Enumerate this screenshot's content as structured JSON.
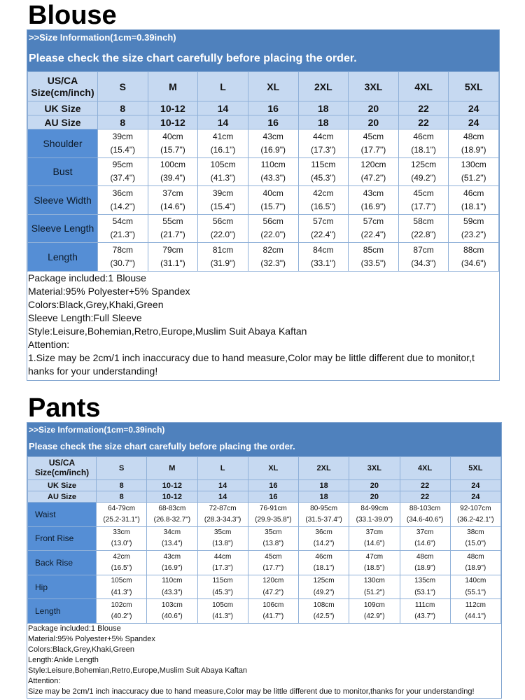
{
  "sizes": [
    "S",
    "M",
    "L",
    "XL",
    "2XL",
    "3XL",
    "4XL",
    "5XL"
  ],
  "blouse": {
    "title": "Blouse",
    "info": ">>Size Information(1cm=0.39inch)",
    "notice": "Please check the size chart carefully before placing the order.",
    "size_header_line1": "US/CA",
    "size_header_line2": "Size(cm/inch)",
    "uk_label": "UK Size",
    "uk": [
      "8",
      "10-12",
      "14",
      "16",
      "18",
      "20",
      "22",
      "24"
    ],
    "au_label": "AU Size",
    "au": [
      "8",
      "10-12",
      "14",
      "16",
      "18",
      "20",
      "22",
      "24"
    ],
    "rows": [
      {
        "label": "Shoulder",
        "cm": [
          "39cm",
          "40cm",
          "41cm",
          "43cm",
          "44cm",
          "45cm",
          "46cm",
          "48cm"
        ],
        "inch": [
          "(15.4\")",
          "(15.7\")",
          "(16.1\")",
          "(16.9\")",
          "(17.3\")",
          "(17.7\")",
          "(18.1\")",
          "(18.9\")"
        ]
      },
      {
        "label": "Bust",
        "cm": [
          "95cm",
          "100cm",
          "105cm",
          "110cm",
          "115cm",
          "120cm",
          "125cm",
          "130cm"
        ],
        "inch": [
          "(37.4\")",
          "(39.4\")",
          "(41.3\")",
          "(43.3\")",
          "(45.3\")",
          "(47.2\")",
          "(49.2\")",
          "(51.2\")"
        ]
      },
      {
        "label": "Sleeve Width",
        "cm": [
          "36cm",
          "37cm",
          "39cm",
          "40cm",
          "42cm",
          "43cm",
          "45cm",
          "46cm"
        ],
        "inch": [
          "(14.2\")",
          "(14.6\")",
          "(15.4\")",
          "(15.7\")",
          "(16.5\")",
          "(16.9\")",
          "(17.7\")",
          "(18.1\")"
        ]
      },
      {
        "label": "Sleeve Length",
        "cm": [
          "54cm",
          "55cm",
          "56cm",
          "56cm",
          "57cm",
          "57cm",
          "58cm",
          "59cm"
        ],
        "inch": [
          "(21.3\")",
          "(21.7\")",
          "(22.0\")",
          "(22.0\")",
          "(22.4\")",
          "(22.4\")",
          "(22.8\")",
          "(23.2\")"
        ]
      },
      {
        "label": "Length",
        "cm": [
          "78cm",
          "79cm",
          "81cm",
          "82cm",
          "84cm",
          "85cm",
          "87cm",
          "88cm"
        ],
        "inch": [
          "(30.7\")",
          "(31.1\")",
          "(31.9\")",
          "(32.3\")",
          "(33.1\")",
          "(33.5\")",
          "(34.3\")",
          "(34.6\")"
        ]
      }
    ],
    "notes": [
      "Package included:1 Blouse",
      "Material:95% Polyester+5% Spandex",
      "Colors:Black,Grey,Khaki,Green",
      "Sleeve Length:Full Sleeve",
      "Style:Leisure,Bohemian,Retro,Europe,Muslim Suit Abaya Kaftan",
      "Attention:",
      "1.Size may be 2cm/1 inch inaccuracy due to hand measure,Color may be little different due to monitor,t",
      "hanks for your understanding!"
    ]
  },
  "pants": {
    "title": "Pants",
    "info": ">>Size Information(1cm=0.39inch)",
    "notice": "Please check the size chart carefully before placing the order.",
    "size_header_line1": "US/CA",
    "size_header_line2": "Size(cm/inch)",
    "uk_label": "UK Size",
    "uk": [
      "8",
      "10-12",
      "14",
      "16",
      "18",
      "20",
      "22",
      "24"
    ],
    "au_label": "AU Size",
    "au": [
      "8",
      "10-12",
      "14",
      "16",
      "18",
      "20",
      "22",
      "24"
    ],
    "rows": [
      {
        "label": "Waist",
        "cm": [
          "64-79cm",
          "68-83cm",
          "72-87cm",
          "76-91cm",
          "80-95cm",
          "84-99cm",
          "88-103cm",
          "92-107cm"
        ],
        "inch": [
          "(25.2-31.1\")",
          "(26.8-32.7\")",
          "(28.3-34.3\")",
          "(29.9-35.8\")",
          "(31.5-37.4\")",
          "(33.1-39.0\")",
          "(34.6-40.6\")",
          "(36.2-42.1\")"
        ]
      },
      {
        "label": "Front Rise",
        "cm": [
          "33cm",
          "34cm",
          "35cm",
          "35cm",
          "36cm",
          "37cm",
          "37cm",
          "38cm"
        ],
        "inch": [
          "(13.0\")",
          "(13.4\")",
          "(13.8\")",
          "(13.8\")",
          "(14.2\")",
          "(14.6\")",
          "(14.6\")",
          "(15.0\")"
        ]
      },
      {
        "label": "Back Rise",
        "cm": [
          "42cm",
          "43cm",
          "44cm",
          "45cm",
          "46cm",
          "47cm",
          "48cm",
          "48cm"
        ],
        "inch": [
          "(16.5\")",
          "(16.9\")",
          "(17.3\")",
          "(17.7\")",
          "(18.1\")",
          "(18.5\")",
          "(18.9\")",
          "(18.9\")"
        ]
      },
      {
        "label": "Hip",
        "cm": [
          "105cm",
          "110cm",
          "115cm",
          "120cm",
          "125cm",
          "130cm",
          "135cm",
          "140cm"
        ],
        "inch": [
          "(41.3\")",
          "(43.3\")",
          "(45.3\")",
          "(47.2\")",
          "(49.2\")",
          "(51.2\")",
          "(53.1\")",
          "(55.1\")"
        ]
      },
      {
        "label": "Length",
        "cm": [
          "102cm",
          "103cm",
          "105cm",
          "106cm",
          "108cm",
          "109cm",
          "111cm",
          "112cm"
        ],
        "inch": [
          "(40.2\")",
          "(40.6\")",
          "(41.3\")",
          "(41.7\")",
          "(42.5\")",
          "(42.9\")",
          "(43.7\")",
          "(44.1\")"
        ]
      }
    ],
    "notes": [
      "Package included:1 Blouse",
      "Material:95% Polyester+5% Spandex",
      "Colors:Black,Grey,Khaki,Green",
      "Length:Ankle Length",
      "Style:Leisure,Bohemian,Retro,Europe,Muslim Suit Abaya Kaftan",
      "Attention:",
      "Size may be 2cm/1 inch inaccuracy due to hand measure,Color may be little different due to monitor,thanks for your understanding!"
    ]
  }
}
